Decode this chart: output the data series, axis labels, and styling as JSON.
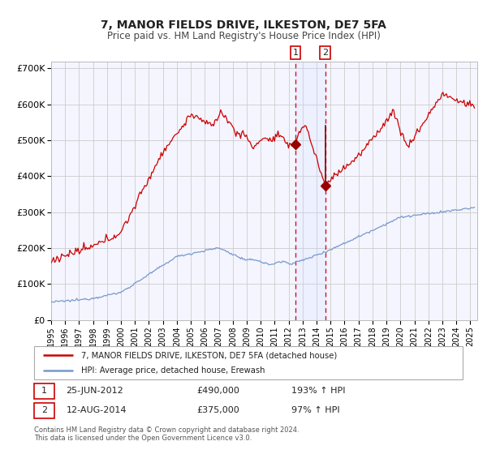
{
  "title": "7, MANOR FIELDS DRIVE, ILKESTON, DE7 5FA",
  "subtitle": "Price paid vs. HM Land Registry's House Price Index (HPI)",
  "red_label": "7, MANOR FIELDS DRIVE, ILKESTON, DE7 5FA (detached house)",
  "blue_label": "HPI: Average price, detached house, Erewash",
  "event1_date": "25-JUN-2012",
  "event1_price": 490000,
  "event1_hpi": "193%",
  "event2_date": "12-AUG-2014",
  "event2_price": 375000,
  "event2_hpi": "97%",
  "event1_x": 2012.48,
  "event2_x": 2014.62,
  "ylim": [
    0,
    720000
  ],
  "xlim": [
    1995.0,
    2025.5
  ],
  "ytick_values": [
    0,
    100000,
    200000,
    300000,
    400000,
    500000,
    600000,
    700000
  ],
  "ytick_labels": [
    "£0",
    "£100K",
    "£200K",
    "£300K",
    "£400K",
    "£500K",
    "£600K",
    "£700K"
  ],
  "red_color": "#cc0000",
  "blue_color": "#7799cc",
  "grid_color": "#cccccc",
  "bg_color": "#ffffff",
  "panel_bg": "#f5f5ff",
  "footnote1": "Contains HM Land Registry data © Crown copyright and database right 2024.",
  "footnote2": "This data is licensed under the Open Government Licence v3.0.",
  "shade_color": "#ddeeff"
}
